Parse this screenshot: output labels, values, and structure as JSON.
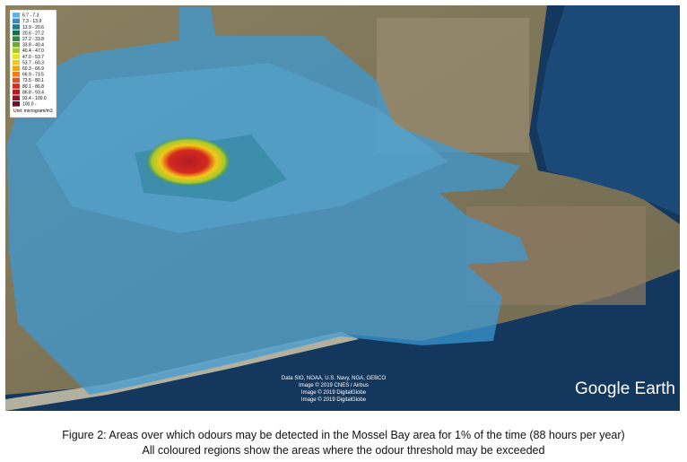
{
  "legend": {
    "entries": [
      {
        "label": "6.7 - 7.3",
        "color": "#5fb4e6"
      },
      {
        "label": "7.3 - 13.9",
        "color": "#2f8fc9"
      },
      {
        "label": "13.9 - 20.6",
        "color": "#1f7a8c"
      },
      {
        "label": "20.6 - 27.2",
        "color": "#1d6b4a"
      },
      {
        "label": "27.2 - 33.8",
        "color": "#2f8a3a"
      },
      {
        "label": "33.8 - 40.4",
        "color": "#6fa832"
      },
      {
        "label": "40.4 - 47.0",
        "color": "#a8c82a"
      },
      {
        "label": "47.0 - 53.7",
        "color": "#e4e41e"
      },
      {
        "label": "53.7 - 60.3",
        "color": "#f2c81a"
      },
      {
        "label": "60.3 - 66.9",
        "color": "#f4a21a"
      },
      {
        "label": "66.9 - 73.5",
        "color": "#ef7d1a"
      },
      {
        "label": "73.5 - 80.1",
        "color": "#e4521c"
      },
      {
        "label": "80.1 - 86.8",
        "color": "#d42a1f"
      },
      {
        "label": "86.8 - 93.4",
        "color": "#b51a22"
      },
      {
        "label": "93.4 - 100.0",
        "color": "#961327"
      },
      {
        "label": "100.0 -",
        "color": "#6e0d22"
      }
    ],
    "unit": "Unit: microgram/m3"
  },
  "attribution": [
    "Data SIO, NOAA, U.S. Navy, NGA, GEBCO",
    "Image © 2019 CNES / Airbus",
    "Image © 2019 DigitalGlobe",
    "Image © 2019 DigitalGlobe"
  ],
  "watermark": "Google Earth",
  "caption": {
    "line1": "Figure 2:  Areas over which odours may be detected in the Mossel Bay area for 1% of the time (88 hours per year)",
    "line2": "All coloured regions show the areas where the odour threshold may be exceeded"
  }
}
